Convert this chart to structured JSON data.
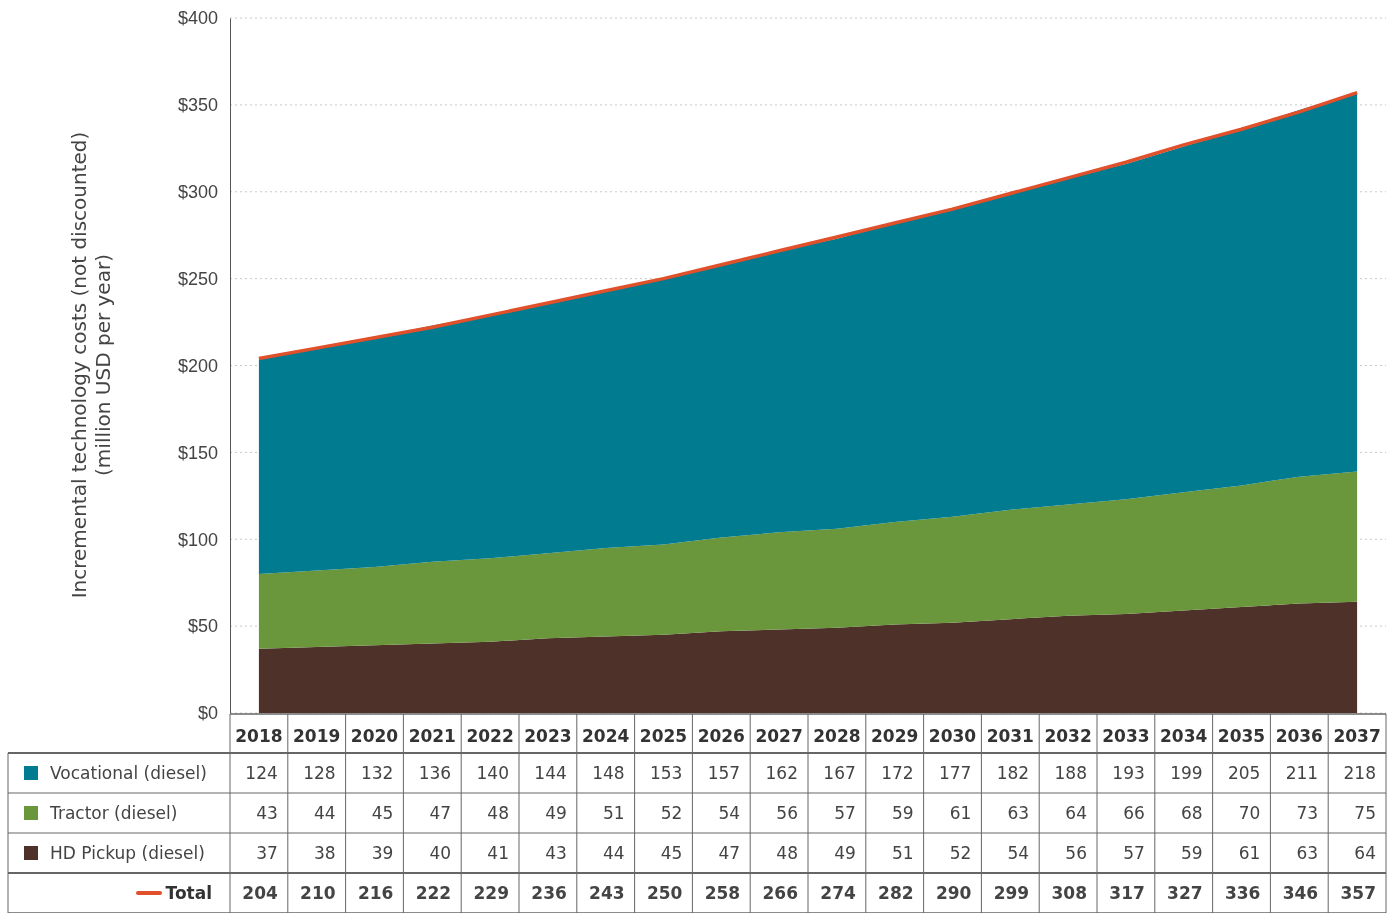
{
  "chart_data": {
    "type": "area",
    "stacked": true,
    "ylabel": "Incremental technology costs (not discounted)\n(million USD per year)",
    "categories": [
      "2018",
      "2019",
      "2020",
      "2021",
      "2022",
      "2023",
      "2024",
      "2025",
      "2026",
      "2027",
      "2028",
      "2029",
      "2030",
      "2031",
      "2032",
      "2033",
      "2034",
      "2035",
      "2036",
      "2037"
    ],
    "series": [
      {
        "name": "HD Pickup (diesel)",
        "color": "#4e3128",
        "values": [
          37,
          38,
          39,
          40,
          41,
          43,
          44,
          45,
          47,
          48,
          49,
          51,
          52,
          54,
          56,
          57,
          59,
          61,
          63,
          64
        ]
      },
      {
        "name": "Tractor (diesel)",
        "color": "#6a963c",
        "values": [
          43,
          44,
          45,
          47,
          48,
          49,
          51,
          52,
          54,
          56,
          57,
          59,
          61,
          63,
          64,
          66,
          68,
          70,
          73,
          75
        ]
      },
      {
        "name": "Vocational (diesel)",
        "color": "#007b8f",
        "values": [
          124,
          128,
          132,
          136,
          140,
          144,
          148,
          153,
          157,
          162,
          167,
          172,
          177,
          182,
          188,
          193,
          199,
          205,
          211,
          218
        ]
      },
      {
        "name": "Total",
        "type": "line",
        "color": "#e0502a",
        "values": [
          204,
          210,
          216,
          222,
          229,
          236,
          243,
          250,
          258,
          266,
          274,
          282,
          290,
          299,
          308,
          317,
          327,
          336,
          346,
          357
        ]
      }
    ],
    "ylim": [
      0,
      400
    ],
    "yticks": [
      {
        "value": 0,
        "label": "$0"
      },
      {
        "value": 50,
        "label": "$50"
      },
      {
        "value": 100,
        "label": "$100"
      },
      {
        "value": 150,
        "label": "$150"
      },
      {
        "value": 200,
        "label": "$200"
      },
      {
        "value": 250,
        "label": "$250"
      },
      {
        "value": 300,
        "label": "$300"
      },
      {
        "value": 350,
        "label": "$350"
      },
      {
        "value": 400,
        "label": "$400"
      }
    ],
    "grid": "y",
    "legend": "bottom",
    "data_labels": true
  }
}
